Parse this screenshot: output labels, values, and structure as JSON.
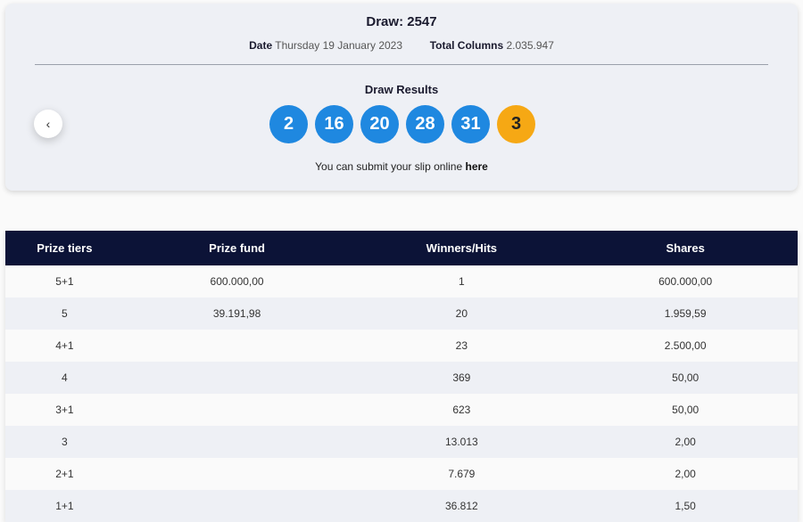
{
  "draw": {
    "title": "Draw: 2547",
    "date_label": "Date",
    "date_value": "Thursday 19 January 2023",
    "columns_label": "Total Columns",
    "columns_value": "2.035.947",
    "results_title": "Draw Results",
    "numbers": [
      "2",
      "16",
      "20",
      "28",
      "31"
    ],
    "bonus": "3",
    "submit_text": "You can submit your slip online",
    "submit_link": "here",
    "prev_icon": "‹"
  },
  "colors": {
    "ball_blue": "#1f88e0",
    "ball_orange": "#f6a814",
    "header_navy": "#0c1337"
  },
  "table": {
    "headers": [
      "Prize tiers",
      "Prize fund",
      "Winners/Hits",
      "Shares"
    ],
    "rows": [
      {
        "tier": "5+1",
        "fund": "600.000,00",
        "winners": "1",
        "shares": "600.000,00"
      },
      {
        "tier": "5",
        "fund": "39.191,98",
        "winners": "20",
        "shares": "1.959,59"
      },
      {
        "tier": "4+1",
        "fund": "",
        "winners": "23",
        "shares": "2.500,00"
      },
      {
        "tier": "4",
        "fund": "",
        "winners": "369",
        "shares": "50,00"
      },
      {
        "tier": "3+1",
        "fund": "",
        "winners": "623",
        "shares": "50,00"
      },
      {
        "tier": "3",
        "fund": "",
        "winners": "13.013",
        "shares": "2,00"
      },
      {
        "tier": "2+1",
        "fund": "",
        "winners": "7.679",
        "shares": "2,00"
      },
      {
        "tier": "1+1",
        "fund": "",
        "winners": "36.812",
        "shares": "1,50"
      }
    ]
  }
}
